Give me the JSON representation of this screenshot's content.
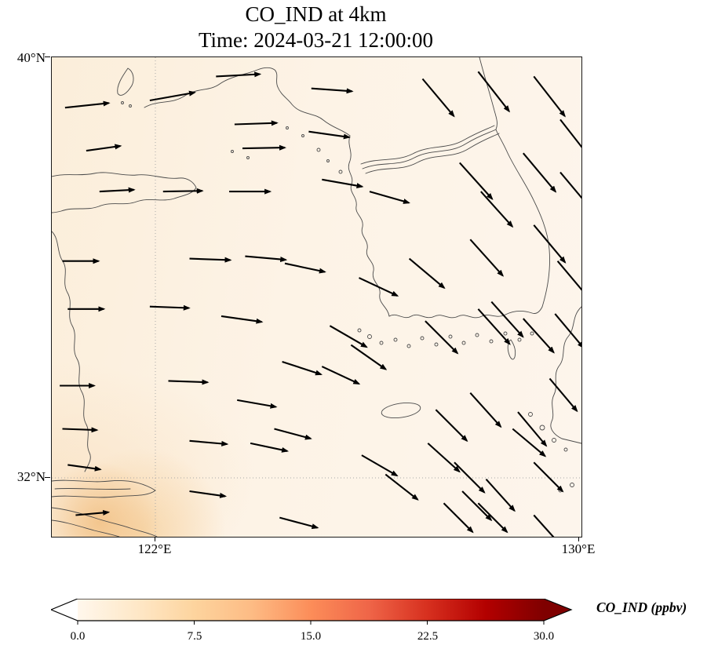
{
  "title": {
    "line1": "CO_IND at 4km",
    "line2": "Time: 2024-03-21 12:00:00"
  },
  "axes": {
    "ytick_top": "40°N",
    "ytick_bottom": "32°N",
    "xtick_left": "122°E",
    "xtick_right": "130°E"
  },
  "colorbar": {
    "label": "CO_IND (ppbv)",
    "tick_labels": [
      "0.0",
      "7.5",
      "15.0",
      "22.5",
      "30.0"
    ],
    "cmap_colors": [
      "#fff7ec",
      "#fee8c8",
      "#fdd49e",
      "#fdbb84",
      "#fc8d59",
      "#ef6548",
      "#d7301f",
      "#b30000",
      "#7f0000"
    ],
    "under_color": "#ffffff",
    "over_color": "#7f0000"
  },
  "chart_data": {
    "type": "heatmap",
    "overlay": "quiver",
    "title": "CO_IND at 4km",
    "subtitle": "Time: 2024-03-21 12:00:00",
    "variable": "CO_IND",
    "units": "ppbv",
    "level_km": 4,
    "time": "2024-03-21 12:00:00",
    "lon_range": [
      120,
      130
    ],
    "lat_range": [
      31,
      40
    ],
    "gridlines": {
      "lon": [
        122
      ],
      "lat": [
        32
      ],
      "style": "dotted"
    },
    "colorbar": {
      "min": 0,
      "max": 30,
      "ticks": [
        0,
        7.5,
        15,
        22.5,
        30
      ],
      "extend": "both",
      "cmap": "OrRd"
    },
    "field_summary": "CO_IND concentrations are near-uniform and low (approx 0-4 ppbv) over the whole domain, with slightly elevated values (approx 5-10 ppbv) near the coast around 120-122E, 31-32.5N (bottom-left corner of map)",
    "wind": {
      "description": "Quiver arrows: westerly flow (arrows pointing east) over the western half of the domain, veering to strong northwesterly flow (arrows pointing southeast) east of about 126E; x,y are percent of plot box from top-left, a is arrow direction in degrees (0=east, negative=downward/southeast), l is arrow length in px",
      "vectors": [
        {
          "x": 2.5,
          "y": 10.5,
          "a": 6,
          "l": 56
        },
        {
          "x": 6.5,
          "y": 19.5,
          "a": 8,
          "l": 44
        },
        {
          "x": 18.5,
          "y": 9.0,
          "a": 10,
          "l": 58
        },
        {
          "x": 31.0,
          "y": 4.0,
          "a": 3,
          "l": 56
        },
        {
          "x": 34.5,
          "y": 14.0,
          "a": 2,
          "l": 54
        },
        {
          "x": 49.0,
          "y": 6.5,
          "a": -4,
          "l": 52
        },
        {
          "x": 48.5,
          "y": 15.5,
          "a": -8,
          "l": 52
        },
        {
          "x": 70.0,
          "y": 4.5,
          "a": -50,
          "l": 62
        },
        {
          "x": 80.5,
          "y": 3.0,
          "a": -52,
          "l": 64
        },
        {
          "x": 91.0,
          "y": 4.0,
          "a": -52,
          "l": 64
        },
        {
          "x": 96.0,
          "y": 13.0,
          "a": -52,
          "l": 62
        },
        {
          "x": 9.0,
          "y": 28.0,
          "a": 3,
          "l": 44
        },
        {
          "x": 21.0,
          "y": 28.0,
          "a": 1,
          "l": 50
        },
        {
          "x": 33.5,
          "y": 28.0,
          "a": 0,
          "l": 52
        },
        {
          "x": 36.0,
          "y": 19.0,
          "a": 1,
          "l": 54
        },
        {
          "x": 51.0,
          "y": 25.5,
          "a": -10,
          "l": 52
        },
        {
          "x": 60.0,
          "y": 28.0,
          "a": -16,
          "l": 52
        },
        {
          "x": 77.0,
          "y": 22.0,
          "a": -48,
          "l": 62
        },
        {
          "x": 81.0,
          "y": 28.0,
          "a": -48,
          "l": 60
        },
        {
          "x": 89.0,
          "y": 20.0,
          "a": -50,
          "l": 64
        },
        {
          "x": 96.0,
          "y": 24.0,
          "a": -50,
          "l": 62
        },
        {
          "x": 2.0,
          "y": 42.5,
          "a": 0,
          "l": 46
        },
        {
          "x": 26.0,
          "y": 42.0,
          "a": -2,
          "l": 52
        },
        {
          "x": 36.5,
          "y": 41.5,
          "a": -5,
          "l": 52
        },
        {
          "x": 44.0,
          "y": 43.0,
          "a": -12,
          "l": 52
        },
        {
          "x": 58.0,
          "y": 46.0,
          "a": -25,
          "l": 54
        },
        {
          "x": 67.5,
          "y": 42.0,
          "a": -40,
          "l": 58
        },
        {
          "x": 79.0,
          "y": 38.0,
          "a": -48,
          "l": 62
        },
        {
          "x": 91.0,
          "y": 35.0,
          "a": -50,
          "l": 62
        },
        {
          "x": 95.5,
          "y": 42.5,
          "a": -50,
          "l": 60
        },
        {
          "x": 83.0,
          "y": 51.0,
          "a": -48,
          "l": 60
        },
        {
          "x": 3.0,
          "y": 52.5,
          "a": 0,
          "l": 46
        },
        {
          "x": 18.5,
          "y": 52.0,
          "a": -2,
          "l": 50
        },
        {
          "x": 32.0,
          "y": 54.0,
          "a": -8,
          "l": 52
        },
        {
          "x": 52.5,
          "y": 56.0,
          "a": -30,
          "l": 54
        },
        {
          "x": 56.5,
          "y": 60.0,
          "a": -35,
          "l": 54
        },
        {
          "x": 70.5,
          "y": 55.0,
          "a": -45,
          "l": 58
        },
        {
          "x": 80.5,
          "y": 52.5,
          "a": -48,
          "l": 60
        },
        {
          "x": 89.0,
          "y": 54.5,
          "a": -48,
          "l": 58
        },
        {
          "x": 95.0,
          "y": 53.5,
          "a": -50,
          "l": 56
        },
        {
          "x": 1.5,
          "y": 68.5,
          "a": 0,
          "l": 44
        },
        {
          "x": 22.0,
          "y": 67.5,
          "a": -2,
          "l": 50
        },
        {
          "x": 35.0,
          "y": 71.5,
          "a": -10,
          "l": 50
        },
        {
          "x": 43.5,
          "y": 63.5,
          "a": -18,
          "l": 52
        },
        {
          "x": 51.0,
          "y": 64.5,
          "a": -25,
          "l": 52
        },
        {
          "x": 72.5,
          "y": 73.5,
          "a": -45,
          "l": 56
        },
        {
          "x": 79.0,
          "y": 70.0,
          "a": -48,
          "l": 58
        },
        {
          "x": 88.0,
          "y": 74.0,
          "a": -50,
          "l": 56
        },
        {
          "x": 87.0,
          "y": 77.5,
          "a": -40,
          "l": 54
        },
        {
          "x": 94.0,
          "y": 67.0,
          "a": -50,
          "l": 54
        },
        {
          "x": 2.0,
          "y": 77.5,
          "a": -2,
          "l": 44
        },
        {
          "x": 3.0,
          "y": 85.0,
          "a": -8,
          "l": 42
        },
        {
          "x": 26.0,
          "y": 80.0,
          "a": -5,
          "l": 48
        },
        {
          "x": 37.5,
          "y": 80.5,
          "a": -12,
          "l": 48
        },
        {
          "x": 42.0,
          "y": 77.5,
          "a": -15,
          "l": 48
        },
        {
          "x": 58.5,
          "y": 83.0,
          "a": -30,
          "l": 52
        },
        {
          "x": 71.0,
          "y": 80.5,
          "a": -42,
          "l": 54
        },
        {
          "x": 76.0,
          "y": 84.5,
          "a": -45,
          "l": 54
        },
        {
          "x": 82.0,
          "y": 88.0,
          "a": -48,
          "l": 54
        },
        {
          "x": 91.0,
          "y": 84.5,
          "a": -45,
          "l": 52
        },
        {
          "x": 4.5,
          "y": 95.5,
          "a": 5,
          "l": 42
        },
        {
          "x": 26.0,
          "y": 90.5,
          "a": -8,
          "l": 46
        },
        {
          "x": 43.0,
          "y": 96.0,
          "a": -15,
          "l": 50
        },
        {
          "x": 63.0,
          "y": 87.0,
          "a": -38,
          "l": 52
        },
        {
          "x": 74.0,
          "y": 93.0,
          "a": -45,
          "l": 52
        },
        {
          "x": 77.5,
          "y": 90.5,
          "a": -45,
          "l": 52
        },
        {
          "x": 80.5,
          "y": 93.0,
          "a": -45,
          "l": 52
        },
        {
          "x": 91.0,
          "y": 95.5,
          "a": -48,
          "l": 50
        }
      ]
    }
  }
}
